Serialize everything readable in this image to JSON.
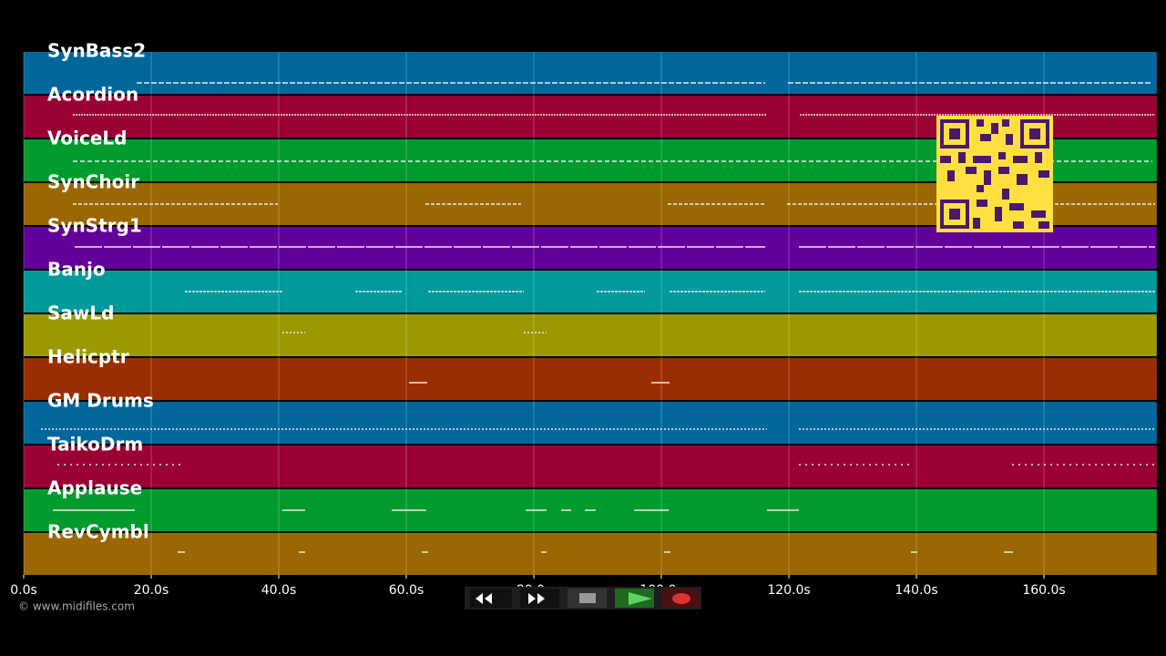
{
  "tracks": [
    {
      "name": "SynBass2",
      "color": "#00679a"
    },
    {
      "name": "Acordion",
      "color": "#9a0036"
    },
    {
      "name": "VoiceLd",
      "color": "#009a2e"
    },
    {
      "name": "SynChoir",
      "color": "#9a6700"
    },
    {
      "name": "SynStrg1",
      "color": "#63009a"
    },
    {
      "name": "Banjo",
      "color": "#009a9a"
    },
    {
      "name": "SawLd",
      "color": "#9a9a00"
    },
    {
      "name": "Helicptr",
      "color": "#9a2e00"
    },
    {
      "name": "GM Drums",
      "color": "#00679a"
    },
    {
      "name": "TaikoDrm",
      "color": "#9a0036"
    },
    {
      "name": "Applause",
      "color": "#009a2e"
    },
    {
      "name": "RevCymbl",
      "color": "#9a6700"
    }
  ],
  "timeline": {
    "xlim": [
      0,
      177.7
    ],
    "ticks": [
      {
        "value": 0,
        "label": "0.0s"
      },
      {
        "value": 20,
        "label": "20.0s"
      },
      {
        "value": 40,
        "label": "40.0s"
      },
      {
        "value": 60,
        "label": "60.0s"
      },
      {
        "value": 80,
        "label": "80.0s"
      },
      {
        "value": 100,
        "label": "100.0s"
      },
      {
        "value": 120,
        "label": "120.0s"
      },
      {
        "value": 140,
        "label": "140.0s"
      },
      {
        "value": 160,
        "label": "160.0s"
      }
    ]
  },
  "footer": {
    "copyright": "© www.midifiles.com"
  }
}
